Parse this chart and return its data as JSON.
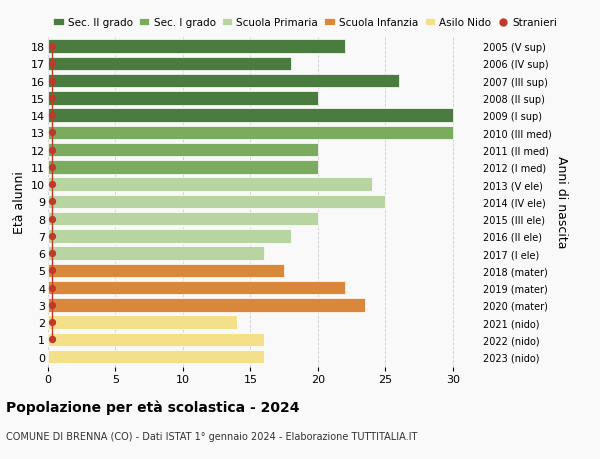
{
  "ages": [
    18,
    17,
    16,
    15,
    14,
    13,
    12,
    11,
    10,
    9,
    8,
    7,
    6,
    5,
    4,
    3,
    2,
    1,
    0
  ],
  "years": [
    "2005 (V sup)",
    "2006 (IV sup)",
    "2007 (III sup)",
    "2008 (II sup)",
    "2009 (I sup)",
    "2010 (III med)",
    "2011 (II med)",
    "2012 (I med)",
    "2013 (V ele)",
    "2014 (IV ele)",
    "2015 (III ele)",
    "2016 (II ele)",
    "2017 (I ele)",
    "2018 (mater)",
    "2019 (mater)",
    "2020 (mater)",
    "2021 (nido)",
    "2022 (nido)",
    "2023 (nido)"
  ],
  "values": [
    22,
    18,
    26,
    20,
    30,
    30,
    20,
    20,
    24,
    25,
    20,
    18,
    16,
    17.5,
    22,
    23.5,
    14,
    16,
    16
  ],
  "stranieri": [
    1,
    1,
    1,
    1,
    1,
    1,
    1,
    1,
    1,
    1,
    1,
    1,
    1,
    1,
    1,
    1,
    1,
    1,
    0
  ],
  "bar_colors": [
    "#4a7c40",
    "#4a7c40",
    "#4a7c40",
    "#4a7c40",
    "#4a7c40",
    "#7aab5e",
    "#7aab5e",
    "#7aab5e",
    "#b8d4a0",
    "#b8d4a0",
    "#b8d4a0",
    "#b8d4a0",
    "#b8d4a0",
    "#d9873a",
    "#d9873a",
    "#d9873a",
    "#f5e08a",
    "#f5e08a",
    "#f5e08a"
  ],
  "legend_labels": [
    "Sec. II grado",
    "Sec. I grado",
    "Scuola Primaria",
    "Scuola Infanzia",
    "Asilo Nido",
    "Stranieri"
  ],
  "legend_colors": [
    "#4a7c40",
    "#7aab5e",
    "#b8d4a0",
    "#d9873a",
    "#f5e08a",
    "#c0392b"
  ],
  "stranieri_color": "#c0392b",
  "ylabel_left": "Età alunni",
  "ylabel_right": "Anni di nascita",
  "xlim": [
    0,
    32
  ],
  "xticks": [
    0,
    5,
    10,
    15,
    20,
    25,
    30
  ],
  "title": "Popolazione per età scolastica - 2024",
  "subtitle": "COMUNE DI BRENNA (CO) - Dati ISTAT 1° gennaio 2024 - Elaborazione TUTTITALIA.IT",
  "bg_color": "#f9f9f9",
  "grid_color": "#cccccc"
}
